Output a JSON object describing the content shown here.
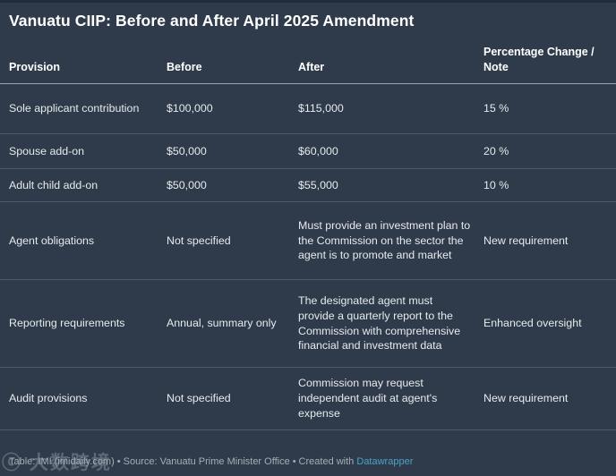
{
  "title": "Vanuatu CIIP: Before and After April 2025 Amendment",
  "chart_data": {
    "type": "table",
    "title": "Vanuatu CIIP: Before and After April 2025 Amendment",
    "columns": [
      "Provision",
      "Before",
      "After",
      "Percentage Change / Note"
    ],
    "rows": [
      {
        "provision": "Sole applicant contribution",
        "before": "$100,000",
        "after": "$115,000",
        "note": "15 %"
      },
      {
        "provision": "Spouse add-on",
        "before": "$50,000",
        "after": "$60,000",
        "note": "20 %"
      },
      {
        "provision": "Adult child add-on",
        "before": "$50,000",
        "after": "$55,000",
        "note": "10 %"
      },
      {
        "provision": "Agent obligations",
        "before": "Not specified",
        "after": "Must provide an investment plan to the Commission on the sector the agent is to promote and market",
        "note": "New requirement"
      },
      {
        "provision": "Reporting requirements",
        "before": "Annual, summary only",
        "after": "The designated agent must provide a quarterly report to the Commission with comprehensive financial and investment data",
        "note": "Enhanced oversight"
      },
      {
        "provision": "Audit provisions",
        "before": "Not specified",
        "after": "Commission may request independent audit at agent's expense",
        "note": "New requirement"
      }
    ]
  },
  "footer": {
    "attribution": "Table: IMI (imidaily.com)",
    "separator": "•",
    "source": "Source: Vanuatu Prime Minister Office",
    "created_with": "Created with",
    "link_label": "Datawrapper"
  },
  "watermark": "ⓒ 大数跨境",
  "colors": {
    "background": "#2f3b4a",
    "text": "#e7eaed",
    "heading": "#ffffff",
    "header_rule": "#9aa3ad",
    "row_rule": "#4a5662",
    "footer_text": "#a6aeb7",
    "link_accent": "#4ba3c7"
  }
}
